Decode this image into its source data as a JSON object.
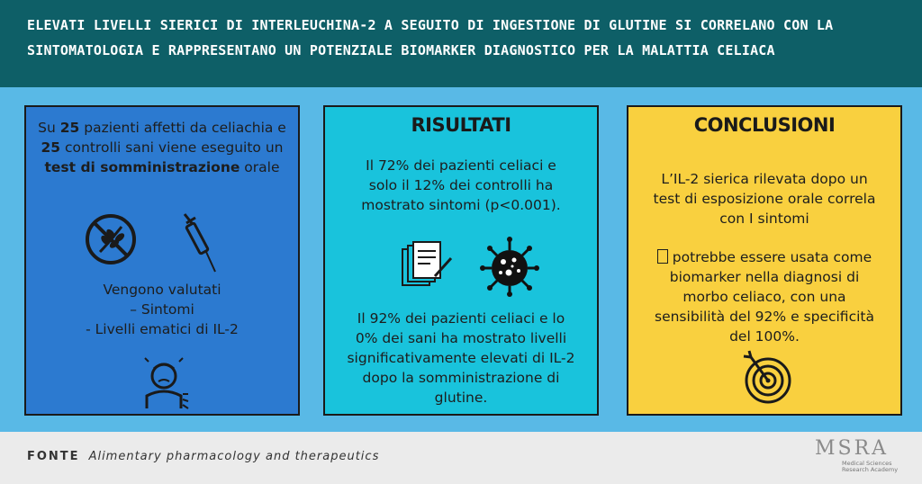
{
  "header": {
    "title_line1": "ELEVATI LIVELLI SIERICI DI INTERLEUCHINA-2 A SEGUITO DI INGESTIONE DI GLUTINE SI CORRELANO CON LA",
    "title_line2": "SINTOMATOLOGIA E RAPPRESENTANO UN POTENZIALE BIOMARKER DIAGNOSTICO PER LA MALATTIA CELIACA"
  },
  "panel1": {
    "intro_a": "Su ",
    "intro_b": "25",
    "intro_c": " pazienti affetti da celiachia e ",
    "intro_d": "25",
    "intro_e": " controlli sani viene eseguito un ",
    "intro_f": "test di somministrazione",
    "intro_g": " orale",
    "evaluated_line1": "Vengono valutati",
    "evaluated_line2": "– Sintomi",
    "evaluated_line3": "- Livelli ematici di IL-2",
    "icons": [
      "no-gluten-icon",
      "syringe-icon",
      "sick-person-icon"
    ]
  },
  "panel2": {
    "title": "RISULTATI",
    "result1": "Il 72% dei pazienti celiaci e solo il 12% dei controlli  ha mostrato sintomi (p<0.001).",
    "result2": "Il 92% dei pazienti celiaci e lo 0% dei sani ha mostrato livelli significativamente elevati di IL-2 dopo la somministrazione di glutine.",
    "icons": [
      "documents-icon",
      "virus-icon"
    ]
  },
  "panel3": {
    "title": "CONCLUSIONI",
    "conclusion1": "L’IL-2 sierica rilevata dopo un test di esposizione orale correla con I sintomi",
    "conclusion2_glyph": "",
    "conclusion2": " potrebbe essere usata come biomarker nella diagnosi di morbo celiaco, con una sensibilità del 92% e specificità del 100%.",
    "icons": [
      "target-icon"
    ]
  },
  "footer": {
    "label": "FONTE",
    "source": "Alimentary pharmacology and therapeutics",
    "logo_text": "MSRA",
    "logo_sub1": "Medical Sciences",
    "logo_sub2": "Research Academy"
  },
  "colors": {
    "header": "#0e5f67",
    "background": "#59b9e6",
    "panel1": "#2c7ad0",
    "panel2": "#19c3dc",
    "panel3": "#f9d03f",
    "footer": "#ebebeb"
  }
}
